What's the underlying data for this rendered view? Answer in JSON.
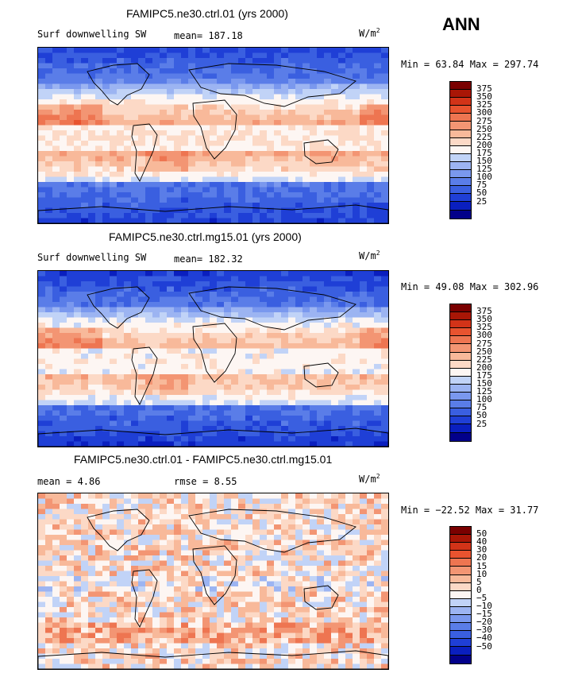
{
  "season": "ANN",
  "palette": [
    "#02008a",
    "#0a1fbf",
    "#1f3fd6",
    "#3a5fe0",
    "#5a7de8",
    "#7a98ee",
    "#9cb4f2",
    "#c1d3f7",
    "#fdf6f3",
    "#fcd9c6",
    "#f8b99a",
    "#f39573",
    "#ee7551",
    "#e8532f",
    "#d23318",
    "#a91606",
    "#7a0000"
  ],
  "panels": [
    {
      "id": "p1",
      "title": "FAMIPC5.ne30.ctrl.01 (yrs 2000)",
      "left_label": "Surf downwelling SW",
      "stat1": "mean= 187.18",
      "stat2": "",
      "units": "W/m",
      "units_exp": "2",
      "minmax": "Min =   63.84 Max = 297.74",
      "levels": [
        "375",
        "350",
        "325",
        "300",
        "275",
        "250",
        "225",
        "200",
        "175",
        "150",
        "125",
        "100",
        "75",
        "50",
        "25"
      ],
      "kind": "sw"
    },
    {
      "id": "p2",
      "title": "FAMIPC5.ne30.ctrl.mg15.01 (yrs 2000)",
      "left_label": "Surf downwelling SW",
      "stat1": "mean= 182.32",
      "stat2": "",
      "units": "W/m",
      "units_exp": "2",
      "minmax": "Min =   49.08 Max = 302.96",
      "levels": [
        "375",
        "350",
        "325",
        "300",
        "275",
        "250",
        "225",
        "200",
        "175",
        "150",
        "125",
        "100",
        "75",
        "50",
        "25"
      ],
      "kind": "sw"
    },
    {
      "id": "p3",
      "title": "FAMIPC5.ne30.ctrl.01 - FAMIPC5.ne30.ctrl.mg15.01",
      "left_label": "mean =    4.86",
      "stat1": "rmse =    8.55",
      "stat2": "",
      "units": "W/m",
      "units_exp": "2",
      "minmax": "Min = −22.52 Max =  31.77",
      "levels": [
        "50",
        "40",
        "30",
        "20",
        "15",
        "10",
        "5",
        "0",
        "−5",
        "−10",
        "−15",
        "−20",
        "−30",
        "−40",
        "−50"
      ],
      "kind": "diff"
    }
  ],
  "chart_data": [
    {
      "type": "heatmap",
      "title": "FAMIPC5.ne30.ctrl.01 (yrs 2000)",
      "variable": "Surf downwelling SW",
      "units": "W/m2",
      "mean": 187.18,
      "min": 63.84,
      "max": 297.74,
      "levels": [
        25,
        50,
        75,
        100,
        125,
        150,
        175,
        200,
        225,
        250,
        275,
        300,
        325,
        350,
        375
      ]
    },
    {
      "type": "heatmap",
      "title": "FAMIPC5.ne30.ctrl.mg15.01 (yrs 2000)",
      "variable": "Surf downwelling SW",
      "units": "W/m2",
      "mean": 182.32,
      "min": 49.08,
      "max": 302.96,
      "levels": [
        25,
        50,
        75,
        100,
        125,
        150,
        175,
        200,
        225,
        250,
        275,
        300,
        325,
        350,
        375
      ]
    },
    {
      "type": "heatmap",
      "title": "FAMIPC5.ne30.ctrl.01 - FAMIPC5.ne30.ctrl.mg15.01",
      "units": "W/m2",
      "mean": 4.86,
      "rmse": 8.55,
      "min": -22.52,
      "max": 31.77,
      "levels": [
        -50,
        -40,
        -30,
        -20,
        -15,
        -10,
        -5,
        0,
        5,
        10,
        15,
        20,
        30,
        40,
        50
      ]
    }
  ]
}
